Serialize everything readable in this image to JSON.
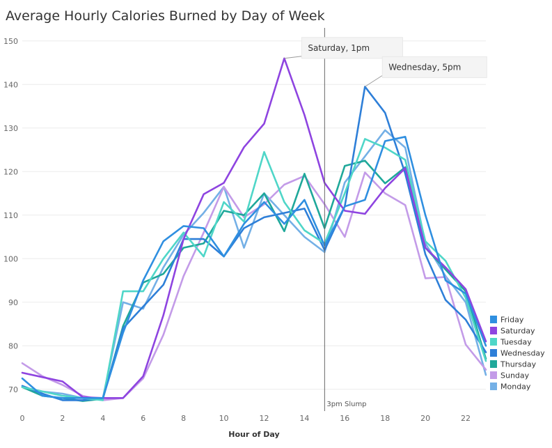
{
  "chart_data": {
    "type": "line",
    "title": "Average Hourly Calories Burned by Day of Week",
    "xlabel": "Hour of Day",
    "ylabel": "",
    "xlim": [
      0,
      23
    ],
    "ylim": [
      65,
      153
    ],
    "x_ticks": [
      0,
      2,
      4,
      6,
      8,
      10,
      12,
      14,
      16,
      18,
      20,
      22
    ],
    "y_ticks": [
      70,
      80,
      90,
      100,
      110,
      120,
      130,
      140,
      150
    ],
    "grid": true,
    "legend_position": "bottom-right",
    "x": [
      0,
      1,
      2,
      3,
      4,
      5,
      6,
      7,
      8,
      9,
      10,
      11,
      12,
      13,
      14,
      15,
      16,
      17,
      18,
      19,
      20,
      21,
      22,
      23
    ],
    "series": [
      {
        "name": "Friday",
        "color": "#2f8fe0",
        "values": [
          72.5,
          68.5,
          68,
          68,
          68,
          83,
          95,
          104,
          107.5,
          107,
          100.5,
          108,
          113,
          108,
          113.5,
          103,
          112,
          113.5,
          127,
          128,
          110,
          95,
          92,
          80
        ]
      },
      {
        "name": "Saturday",
        "color": "#8e44e0",
        "values": [
          73.8,
          72.8,
          71.8,
          68.2,
          68,
          68,
          73,
          87,
          104.5,
          114.8,
          117.4,
          125.6,
          131,
          146,
          133,
          117.4,
          111,
          110.3,
          116.2,
          120.8,
          102.5,
          98,
          93,
          81
        ]
      },
      {
        "name": "Tuesday",
        "color": "#4fd6c8",
        "values": [
          70.5,
          69.5,
          68.5,
          68,
          67.5,
          92.5,
          92.5,
          100,
          106,
          100.5,
          113,
          108.5,
          124.5,
          113,
          106.5,
          103.5,
          115,
          127.5,
          125.5,
          122.7,
          104,
          99.5,
          91,
          76.5
        ]
      },
      {
        "name": "Wednesday",
        "color": "#2e7fd8",
        "values": [
          70.8,
          69,
          67.5,
          67.5,
          68,
          84,
          89,
          94,
          104.5,
          104.5,
          100.5,
          107,
          109.5,
          110.5,
          111.5,
          102,
          112,
          139.5,
          133.5,
          119.5,
          101,
          90.5,
          86,
          78.5
        ]
      },
      {
        "name": "Thursday",
        "color": "#1fa89a",
        "values": [
          70.5,
          68.5,
          68,
          67.3,
          67.8,
          84.5,
          94.5,
          96.5,
          102.5,
          103.5,
          111,
          110,
          115,
          106.3,
          119.5,
          107,
          121.3,
          122.5,
          117.3,
          121,
          102.5,
          97.5,
          92.5,
          77
        ]
      },
      {
        "name": "Sunday",
        "color": "#c39be8",
        "values": [
          76,
          73,
          71,
          68.5,
          67.5,
          68,
          72.5,
          82.5,
          96,
          106,
          116.5,
          109.5,
          112.5,
          117,
          119,
          112.5,
          105,
          119.8,
          115,
          112.3,
          95.5,
          95.8,
          80.3,
          74.5
        ]
      },
      {
        "name": "Monday",
        "color": "#74b0e6",
        "values": [
          70.5,
          69.5,
          69,
          68,
          68,
          90,
          88.5,
          98,
          105.5,
          110.5,
          116.5,
          102.5,
          115,
          110,
          105,
          101.5,
          117.5,
          123.5,
          129.5,
          125.5,
          103.5,
          96,
          90,
          73.3
        ]
      }
    ],
    "reference_line": {
      "x": 15,
      "label": "3pm Slump"
    },
    "annotations": [
      {
        "label": "Saturday, 1pm",
        "x": 13,
        "y": 146
      },
      {
        "label": "Wednesday, 5pm",
        "x": 17,
        "y": 139.5
      }
    ]
  }
}
